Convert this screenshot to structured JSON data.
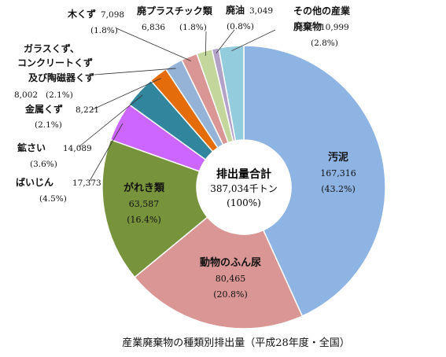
{
  "chart_data": {
    "type": "pie",
    "title": "産業廃棄物の種類別排出量（平成28年度・全国）",
    "center": {
      "line1": "排出量合計",
      "line2": "387,034千トン",
      "line3": "(100%)"
    },
    "slices": [
      {
        "name": "汚泥",
        "value": 167316,
        "value_label": "167,316",
        "percent_label": "(43.2%)",
        "color": "#8eb4e3"
      },
      {
        "name": "動物のふん尿",
        "value": 80465,
        "value_label": "80,465",
        "percent_label": "(20.8%)",
        "color": "#d99694"
      },
      {
        "name": "がれき類",
        "value": 63587,
        "value_label": "63,587",
        "percent_label": "(16.4%)",
        "color": "#77933c"
      },
      {
        "name": "ばいじん",
        "value": 17373,
        "value_label": "17,373",
        "percent_label": "(4.5%)",
        "color": "#cc66ff"
      },
      {
        "name": "鉱さい",
        "value": 14089,
        "value_label": "14,089",
        "percent_label": "(3.6%)",
        "color": "#31859c"
      },
      {
        "name": "金属くず",
        "value": 8221,
        "value_label": "8,221",
        "percent_label": "(2.1%)",
        "color": "#e46c0a"
      },
      {
        "name": "ガラスくず、コンクリートくず及び陶磁器くず",
        "name_lines": [
          "ガラスくず、",
          "コンクリートくず",
          "及び陶磁器くず"
        ],
        "value": 8002,
        "value_label": "8,002",
        "percent_label": "(2.1%)",
        "color": "#95b3d7"
      },
      {
        "name": "木くず",
        "value": 7098,
        "value_label": "7,098",
        "percent_label": "(1.8%)",
        "color": "#da9694"
      },
      {
        "name": "廃プラスチック類",
        "value": 6836,
        "value_label": "6,836",
        "percent_label": "(1.8%)",
        "color": "#c3d69b"
      },
      {
        "name": "廃油",
        "value": 3049,
        "value_label": "3,049",
        "percent_label": "(0.8%)",
        "color": "#b3a2c7"
      },
      {
        "name": "その他の産業廃棄物",
        "name_lines": [
          "その他の産業",
          "廃棄物"
        ],
        "value": 10999,
        "value_label": "10,999",
        "percent_label": "(2.8%)",
        "color": "#93cddd"
      }
    ]
  }
}
